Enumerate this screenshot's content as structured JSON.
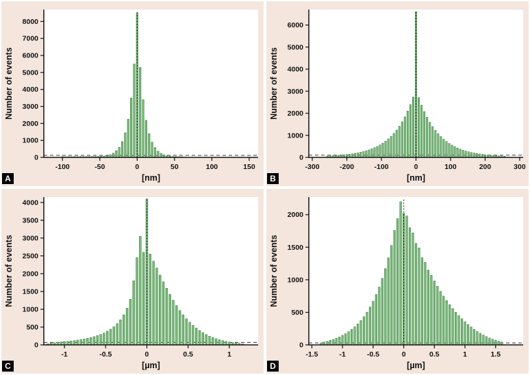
{
  "figure": {
    "background": "#f4e6dd",
    "bar_fill": "#7cb87c",
    "bar_stroke": "#2f7d33",
    "axis_color": "#111111",
    "panel_labels": [
      "A",
      "B",
      "C",
      "D"
    ]
  },
  "chart_data": [
    {
      "type": "bar",
      "panel": "A",
      "ylabel": "Number of events",
      "xlabel": "[nm]",
      "xlim": [
        -125,
        162
      ],
      "ylim": [
        0,
        8700
      ],
      "xtick_values": [
        -100,
        -50,
        0,
        50,
        100,
        150
      ],
      "xtick_labels": [
        "-100",
        "-50",
        "0",
        "50",
        "100",
        "150"
      ],
      "ytick_values": [
        0,
        1000,
        2000,
        3000,
        4000,
        5000,
        6000,
        7000,
        8000
      ],
      "ytick_labels": [
        "0",
        "1000",
        "2000",
        "3000",
        "4000",
        "5000",
        "6000",
        "7000",
        "8000"
      ],
      "x_start": -104,
      "x_step": 4,
      "bar_width": 2.4,
      "baseline": 120,
      "vline_x": 0,
      "vline_top": 8600,
      "values": [
        15,
        48,
        40,
        45,
        38,
        46,
        42,
        50,
        44,
        52,
        47,
        55,
        50,
        60,
        65,
        80,
        105,
        160,
        250,
        390,
        600,
        930,
        1450,
        2250,
        3500,
        5500,
        8500,
        5300,
        3400,
        2180,
        1400,
        900,
        580,
        370,
        235,
        150,
        100,
        72,
        58,
        50,
        44,
        38,
        18
      ]
    },
    {
      "type": "bar",
      "panel": "B",
      "ylabel": "Number of events",
      "xlabel": "[nm]",
      "xlim": [
        -310,
        310
      ],
      "ylim": [
        0,
        6700
      ],
      "xtick_values": [
        -300,
        -200,
        -100,
        0,
        100,
        200,
        300
      ],
      "xtick_labels": [
        "-300",
        "-200",
        "-100",
        "0",
        "100",
        "200",
        "300"
      ],
      "ytick_values": [
        0,
        1000,
        2000,
        3000,
        4000,
        5000,
        6000
      ],
      "ytick_labels": [
        "0",
        "1000",
        "2000",
        "3000",
        "4000",
        "5000",
        "6000"
      ],
      "x_start": -256,
      "x_step": 8,
      "bar_width": 4.8,
      "baseline": 100,
      "vline_x": 0,
      "vline_top": 6640,
      "values": [
        60,
        70,
        78,
        88,
        95,
        108,
        118,
        132,
        148,
        165,
        188,
        210,
        238,
        268,
        302,
        342,
        388,
        440,
        500,
        570,
        648,
        738,
        840,
        958,
        1090,
        1240,
        1415,
        1615,
        1840,
        2100,
        2395,
        2735,
        6600,
        2710,
        2370,
        2080,
        1820,
        1595,
        1400,
        1225,
        1075,
        945,
        825,
        725,
        635,
        558,
        490,
        430,
        378,
        332,
        292,
        258,
        228,
        200,
        178,
        156,
        138,
        122,
        108,
        96,
        85,
        76,
        68,
        60,
        54
      ]
    },
    {
      "type": "bar",
      "panel": "C",
      "ylabel": "Number of events",
      "xlabel": "[µm]",
      "xlim": [
        -1.25,
        1.35
      ],
      "ylim": [
        0,
        4150
      ],
      "xtick_values": [
        -1,
        -0.5,
        0,
        0.5,
        1
      ],
      "xtick_labels": [
        "-1",
        "-0.5",
        "0",
        "0.5",
        "1"
      ],
      "ytick_values": [
        0,
        500,
        1000,
        1500,
        2000,
        2500,
        3000,
        3500,
        4000
      ],
      "ytick_labels": [
        "0",
        "500",
        "1000",
        "1500",
        "2000",
        "2500",
        "3000",
        "3500",
        "4000"
      ],
      "x_start": -1.2,
      "x_step": 0.04,
      "bar_width": 0.024,
      "baseline": 70,
      "vline_x": 0,
      "vline_top": 4120,
      "values": [
        35,
        55,
        60,
        70,
        82,
        95,
        102,
        112,
        122,
        135,
        150,
        168,
        188,
        208,
        232,
        262,
        295,
        335,
        385,
        442,
        510,
        598,
        705,
        845,
        1030,
        1280,
        1800,
        2450,
        3050,
        2600,
        4100,
        2550,
        2350,
        2160,
        1960,
        1770,
        1590,
        1420,
        1255,
        1105,
        965,
        845,
        735,
        635,
        548,
        472,
        405,
        345,
        292,
        246,
        207,
        174,
        145,
        120,
        99,
        82,
        66,
        53,
        43,
        30
      ]
    },
    {
      "type": "bar",
      "panel": "D",
      "ylabel": "Number of events",
      "xlabel": "[µm]",
      "xlim": [
        -1.55,
        1.95
      ],
      "ylim": [
        0,
        2270
      ],
      "xtick_values": [
        -1.5,
        -1,
        -0.5,
        0,
        0.5,
        1,
        1.5
      ],
      "xtick_labels": [
        "-1.5",
        "-1",
        "-0.5",
        "0",
        "0.5",
        "1",
        "1.5"
      ],
      "ytick_values": [
        0,
        500,
        1000,
        1500,
        2000
      ],
      "ytick_labels": [
        "0",
        "500",
        "1000",
        "1500",
        "2000"
      ],
      "x_start": -1.35,
      "x_step": 0.05,
      "bar_width": 0.03,
      "baseline": 30,
      "vline_x": 0,
      "vline_top": 2230,
      "values": [
        28,
        46,
        54,
        72,
        84,
        103,
        122,
        148,
        172,
        204,
        238,
        278,
        322,
        374,
        434,
        503,
        582,
        672,
        773,
        888,
        1022,
        1172,
        1338,
        1528,
        1760,
        1940,
        2200,
        2020,
        1980,
        1800,
        1720,
        1560,
        1490,
        1340,
        1270,
        1150,
        1068,
        982,
        900,
        822,
        750,
        682,
        618,
        558,
        502,
        450,
        402,
        356,
        314,
        276,
        240,
        208,
        178,
        152,
        128,
        106,
        88,
        72,
        58,
        45
      ]
    }
  ]
}
